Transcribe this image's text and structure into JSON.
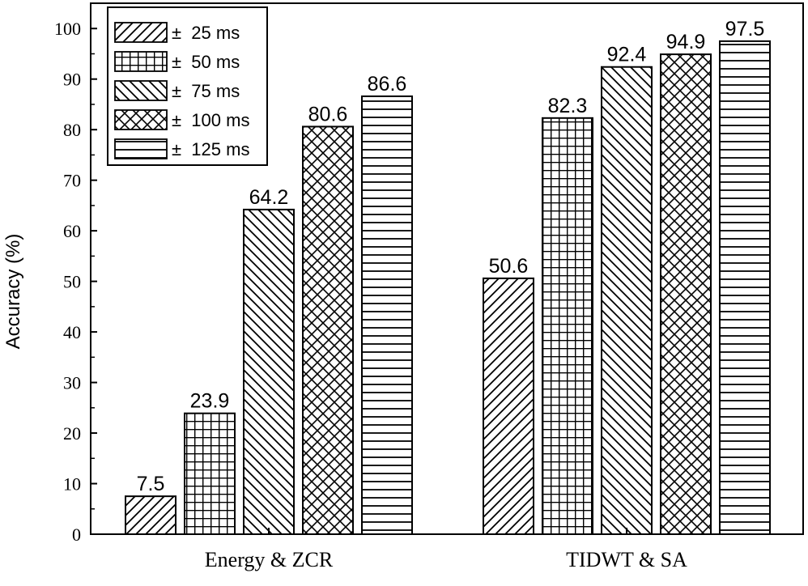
{
  "chart_data": {
    "type": "bar",
    "title": "",
    "xlabel": "",
    "ylabel": "Accuracy (%)",
    "ylim": [
      0,
      105
    ],
    "yticks": [
      0,
      10,
      20,
      30,
      40,
      50,
      60,
      70,
      80,
      90,
      100
    ],
    "categories": [
      "Energy & ZCR",
      "TIDWT & SA"
    ],
    "legend_position": "top-left",
    "grid": false,
    "series": [
      {
        "name": "± 25 ms",
        "pattern": "diag-up",
        "values": [
          7.5,
          50.6
        ],
        "labels": [
          "7.5",
          "50.6"
        ]
      },
      {
        "name": "± 50 ms",
        "pattern": "grid",
        "values": [
          23.9,
          82.3
        ],
        "labels": [
          "23.9",
          "82.3"
        ]
      },
      {
        "name": "± 75 ms",
        "pattern": "diag-down",
        "values": [
          64.2,
          92.4
        ],
        "labels": [
          "64.2",
          "92.4"
        ]
      },
      {
        "name": "± 100 ms",
        "pattern": "crosshatch",
        "values": [
          80.6,
          94.9
        ],
        "labels": [
          "80.6",
          "94.9"
        ]
      },
      {
        "name": "± 125 ms",
        "pattern": "horizontal",
        "values": [
          86.6,
          97.5
        ],
        "labels": [
          "86.6",
          "97.5"
        ]
      }
    ]
  }
}
